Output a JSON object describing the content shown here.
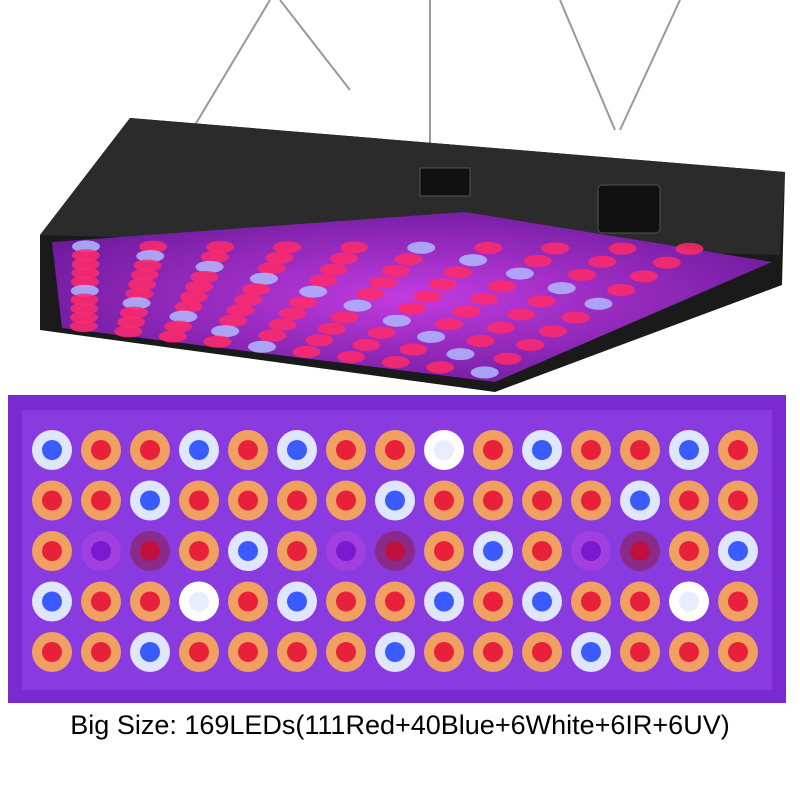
{
  "caption": "Big Size: 169LEDs(111Red+40Blue+6White+6IR+6UV)"
}
